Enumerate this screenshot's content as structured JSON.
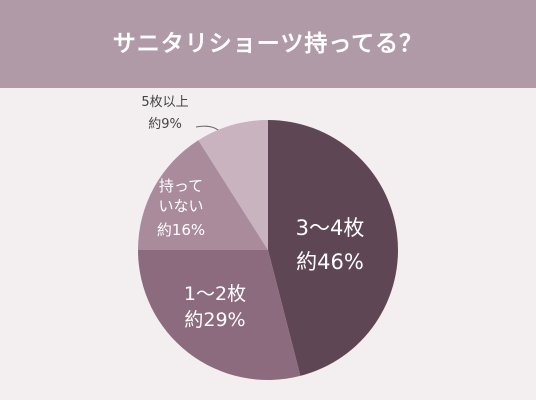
{
  "chart_data": {
    "type": "pie",
    "title": "サニタリショーツ持ってる？",
    "categories": [
      "3〜4枚",
      "1〜2枚",
      "持っていない",
      "5枚以上"
    ],
    "values": [
      46,
      29,
      16,
      9
    ],
    "value_labels": [
      "約46%",
      "約29%",
      "約16%",
      "約9%"
    ],
    "colors": [
      "#5f4654",
      "#8b6b7d",
      "#a98b9b",
      "#c8b3bf"
    ]
  }
}
